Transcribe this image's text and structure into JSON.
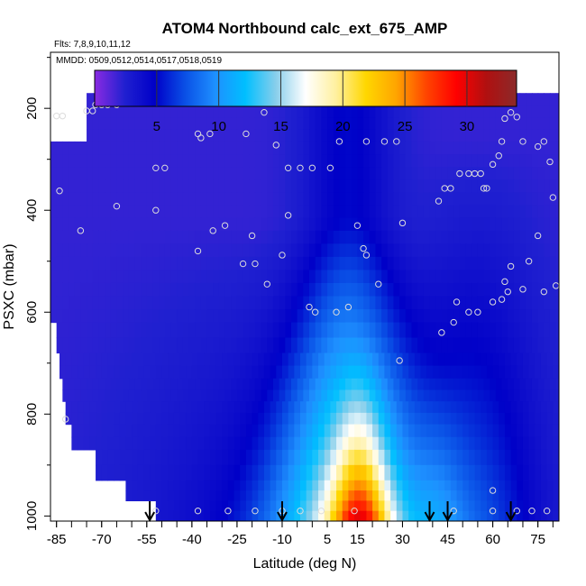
{
  "chart_data": {
    "type": "heatmap",
    "title": "ATOM4 Northbound calc_ext_675_AMP",
    "subtitle_flights": "Flts: 7,8,9,10,11,12",
    "subtitle_dates": "MMDD: 0509,0512,0514,0517,0518,0519",
    "xlabel": "Latitude (deg N)",
    "ylabel": "PSXC (mbar)",
    "xlim": [
      -87,
      82
    ],
    "ylim": [
      1010,
      90
    ],
    "y_reversed": true,
    "x_tick_labels": [
      "-85",
      "-70",
      "-55",
      "-40",
      "-25",
      "-10",
      "5",
      "15",
      "30",
      "45",
      "60",
      "75"
    ],
    "x_tick_values": [
      -85,
      -70,
      -55,
      -40,
      -25,
      -10,
      5,
      15,
      30,
      45,
      60,
      75
    ],
    "y_tick_labels": [
      "200",
      "400",
      "600",
      "800",
      "1000"
    ],
    "y_tick_values": [
      200,
      400,
      600,
      800,
      1000
    ],
    "colorbar": {
      "range": [
        0,
        34
      ],
      "tick_labels": [
        "5",
        "10",
        "15",
        "20",
        "25",
        "30"
      ],
      "tick_values": [
        5,
        10,
        15,
        20,
        25,
        30
      ],
      "colors": [
        "#8a2be2",
        "#2020d0",
        "#0000c8",
        "#0a50e6",
        "#1e90ff",
        "#00bfff",
        "#87ceeb",
        "#ffffff",
        "#fff0a0",
        "#ffd700",
        "#ffa500",
        "#ff4500",
        "#ff0000",
        "#b01010",
        "#8b2a2a"
      ]
    },
    "layers": [
      {
        "p_top": 170,
        "p_bot": 265,
        "lat_min": -75,
        "lat_max": 82
      },
      {
        "p_top": 265,
        "p_bot": 440,
        "lat_min": -87,
        "lat_max": 82
      },
      {
        "p_top": 440,
        "p_bot": 620,
        "lat_min": -87,
        "lat_max": 82
      },
      {
        "p_top": 620,
        "p_bot": 680,
        "lat_min": -85,
        "lat_max": 82
      },
      {
        "p_top": 680,
        "p_bot": 730,
        "lat_min": -84,
        "lat_max": 82
      },
      {
        "p_top": 730,
        "p_bot": 775,
        "lat_min": -83,
        "lat_max": 82
      },
      {
        "p_top": 775,
        "p_bot": 820,
        "lat_min": -82,
        "lat_max": 82
      },
      {
        "p_top": 820,
        "p_bot": 870,
        "lat_min": -80,
        "lat_max": 82
      },
      {
        "p_top": 870,
        "p_bot": 930,
        "lat_min": -72,
        "lat_max": 82
      },
      {
        "p_top": 930,
        "p_bot": 970,
        "lat_min": -62,
        "lat_max": 82
      },
      {
        "p_top": 970,
        "p_bot": 1010,
        "lat_min": -52,
        "lat_max": 82
      }
    ],
    "arrows_lat": [
      -54,
      -10,
      39,
      45,
      66
    ],
    "points": [
      [
        -85,
        215
      ],
      [
        -83,
        215
      ],
      [
        -75,
        205
      ],
      [
        -73,
        205
      ],
      [
        -72,
        193
      ],
      [
        -70,
        193
      ],
      [
        -68,
        193
      ],
      [
        -65,
        193
      ],
      [
        -38,
        250
      ],
      [
        -37,
        258
      ],
      [
        -34,
        250
      ],
      [
        -22,
        250
      ],
      [
        -16,
        208
      ],
      [
        -1,
        186
      ],
      [
        -12,
        272
      ],
      [
        -8,
        317
      ],
      [
        -4,
        317
      ],
      [
        0,
        317
      ],
      [
        6,
        317
      ],
      [
        9,
        265
      ],
      [
        18,
        265
      ],
      [
        24,
        265
      ],
      [
        28,
        265
      ],
      [
        -52,
        317
      ],
      [
        -49,
        317
      ],
      [
        -84,
        362
      ],
      [
        -77,
        440
      ],
      [
        -65,
        392
      ],
      [
        -52,
        400
      ],
      [
        -38,
        480
      ],
      [
        -33,
        440
      ],
      [
        -29,
        430
      ],
      [
        -23,
        505
      ],
      [
        -20,
        450
      ],
      [
        -19,
        505
      ],
      [
        -15,
        545
      ],
      [
        -10,
        488
      ],
      [
        -8,
        410
      ],
      [
        -1,
        590
      ],
      [
        1,
        600
      ],
      [
        8,
        600
      ],
      [
        12,
        590
      ],
      [
        15,
        430
      ],
      [
        17,
        475
      ],
      [
        18,
        488
      ],
      [
        22,
        545
      ],
      [
        30,
        425
      ],
      [
        42,
        382
      ],
      [
        44,
        357
      ],
      [
        46,
        357
      ],
      [
        49,
        328
      ],
      [
        52,
        328
      ],
      [
        54,
        328
      ],
      [
        56,
        328
      ],
      [
        57,
        357
      ],
      [
        58,
        357
      ],
      [
        60,
        310
      ],
      [
        62,
        293
      ],
      [
        63,
        265
      ],
      [
        64,
        220
      ],
      [
        66,
        208
      ],
      [
        68,
        217
      ],
      [
        70,
        265
      ],
      [
        75,
        275
      ],
      [
        77,
        265
      ],
      [
        79,
        305
      ],
      [
        80,
        375
      ],
      [
        75,
        450
      ],
      [
        72,
        500
      ],
      [
        66,
        510
      ],
      [
        64,
        540
      ],
      [
        65,
        560
      ],
      [
        63,
        575
      ],
      [
        60,
        580
      ],
      [
        70,
        555
      ],
      [
        77,
        560
      ],
      [
        81,
        548
      ],
      [
        47,
        620
      ],
      [
        48,
        580
      ],
      [
        52,
        600
      ],
      [
        55,
        600
      ],
      [
        43,
        640
      ],
      [
        29,
        695
      ],
      [
        -82,
        810
      ],
      [
        -52,
        990
      ],
      [
        -38,
        990
      ],
      [
        -28,
        990
      ],
      [
        -19,
        990
      ],
      [
        -10,
        990
      ],
      [
        -4,
        990
      ],
      [
        3,
        990
      ],
      [
        14,
        990
      ],
      [
        47,
        990
      ],
      [
        60,
        950
      ],
      [
        60,
        990
      ],
      [
        68,
        990
      ],
      [
        73,
        990
      ],
      [
        78,
        990
      ]
    ]
  }
}
